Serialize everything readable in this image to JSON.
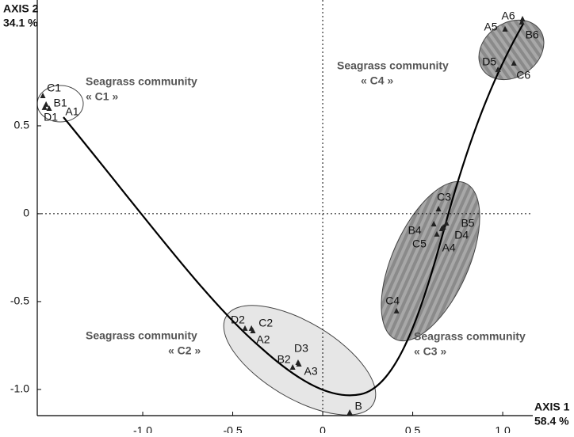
{
  "chart_data": {
    "type": "scatter",
    "y_axis_title": "AXIS 2",
    "y_axis_subtitle": "34.1 %",
    "x_axis_title": "AXIS 1",
    "x_axis_subtitle": "58.4 %",
    "annotations": [
      [
        "Seagrass community",
        "« C1 »"
      ],
      [
        "Seagrass community",
        "« C4 »"
      ],
      [
        "Seagrass community",
        "« C2 »"
      ],
      [
        "Seagrass community",
        "« C3 »"
      ]
    ],
    "point_labels": [
      "C1",
      "B1",
      "D1",
      "A1",
      "D2",
      "C2",
      "A2",
      "D3",
      "B2",
      "A3",
      "B",
      "C4",
      "B4",
      "C5",
      "A4",
      "D4",
      "B5",
      "C3",
      "A5",
      "A6",
      "B6",
      "D5",
      "C6"
    ],
    "x": [
      -1.555,
      -1.537,
      -1.546,
      -1.52,
      -0.432,
      -0.396,
      -0.388,
      -0.137,
      -0.167,
      -0.132,
      0.15,
      0.41,
      0.617,
      0.634,
      0.661,
      0.67,
      0.687,
      0.643,
      1.013,
      1.11,
      1.106,
      0.974,
      1.062
    ],
    "y": [
      0.671,
      0.622,
      0.604,
      0.599,
      -0.653,
      -0.653,
      -0.667,
      -0.847,
      -0.874,
      -0.856,
      -1.131,
      -0.554,
      -0.059,
      -0.117,
      -0.086,
      -0.077,
      -0.054,
      0.027,
      1.05,
      1.108,
      1.09,
      0.82,
      0.856
    ],
    "color": "#222222",
    "xlim": [
      -1.586,
      1.167
    ],
    "ylim": [
      -1.149,
      1.216
    ],
    "xticks": [
      {
        "value": -1,
        "label": "-1.0"
      },
      -0.5,
      0,
      0.5,
      {
        "value": 1,
        "label": "1.0"
      }
    ],
    "yticks": [
      0.5,
      0,
      -0.5,
      {
        "value": -1,
        "label": "-1.0"
      }
    ]
  }
}
